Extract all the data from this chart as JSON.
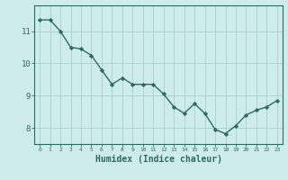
{
  "x": [
    0,
    1,
    2,
    3,
    4,
    5,
    6,
    7,
    8,
    9,
    10,
    11,
    12,
    13,
    14,
    15,
    16,
    17,
    18,
    19,
    20,
    21,
    22,
    23
  ],
  "y": [
    11.35,
    11.35,
    11.0,
    10.5,
    10.45,
    10.25,
    9.8,
    9.35,
    9.55,
    9.35,
    9.35,
    9.35,
    9.05,
    8.65,
    8.45,
    8.75,
    8.45,
    7.95,
    7.82,
    8.07,
    8.4,
    8.55,
    8.65,
    8.85
  ],
  "line_color": "#2e6b5e",
  "marker": "D",
  "markersize": 2.2,
  "linewidth": 1.0,
  "bg_color": "#ceecea",
  "grid_color": "#afd4d0",
  "tick_color": "#2e6b5e",
  "xlabel": "Humidex (Indice chaleur)",
  "xlabel_fontsize": 7,
  "ylabel_ticks": [
    8,
    9,
    10,
    11
  ],
  "ylim": [
    7.5,
    11.8
  ],
  "xlim": [
    -0.5,
    23.5
  ]
}
